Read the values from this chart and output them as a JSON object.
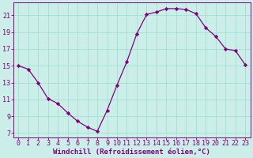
{
  "x": [
    0,
    1,
    2,
    3,
    4,
    5,
    6,
    7,
    8,
    9,
    10,
    11,
    12,
    13,
    14,
    15,
    16,
    17,
    18,
    19,
    20,
    21,
    22,
    23
  ],
  "y": [
    15,
    14.6,
    13,
    11.1,
    10.5,
    9.4,
    8.4,
    7.7,
    7.2,
    9.7,
    12.7,
    15.5,
    18.8,
    21.1,
    21.4,
    21.8,
    21.8,
    21.7,
    21.2,
    19.5,
    18.5,
    17.0,
    16.8,
    15.1
  ],
  "line_color": "#800080",
  "marker": "D",
  "marker_size": 2.2,
  "bg_color": "#cceee8",
  "grid_color": "#99ddcc",
  "xlabel": "Windchill (Refroidissement éolien,°C)",
  "xlim": [
    -0.5,
    23.5
  ],
  "ylim": [
    6.5,
    22.5
  ],
  "xticks": [
    0,
    1,
    2,
    3,
    4,
    5,
    6,
    7,
    8,
    9,
    10,
    11,
    12,
    13,
    14,
    15,
    16,
    17,
    18,
    19,
    20,
    21,
    22,
    23
  ],
  "yticks": [
    7,
    9,
    11,
    13,
    15,
    17,
    19,
    21
  ],
  "label_fontsize": 6.5,
  "tick_fontsize": 6.0
}
